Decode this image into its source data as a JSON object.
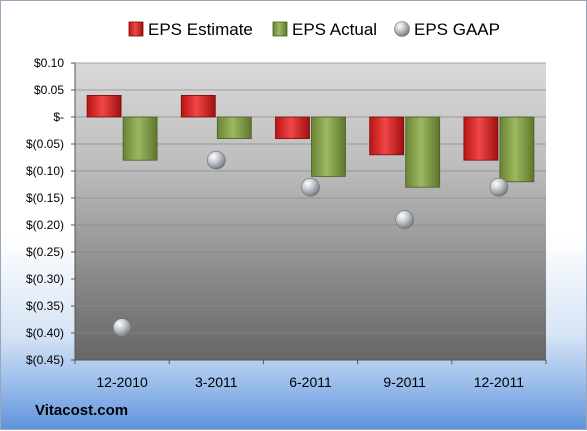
{
  "chart_data": {
    "type": "bar",
    "title": "",
    "xlabel": "",
    "ylabel": "",
    "categories": [
      "12-2010",
      "3-2011",
      "6-2011",
      "9-2011",
      "12-2011"
    ],
    "series": [
      {
        "name": "EPS Estimate",
        "kind": "bar",
        "values": [
          0.04,
          0.04,
          -0.04,
          -0.07,
          -0.08
        ],
        "color": "#d42a2a"
      },
      {
        "name": "EPS Actual",
        "kind": "bar",
        "values": [
          -0.08,
          -0.04,
          -0.11,
          -0.13,
          -0.12
        ],
        "color": "#7f9a44"
      },
      {
        "name": "EPS GAAP",
        "kind": "point",
        "values": [
          -0.39,
          -0.08,
          -0.13,
          -0.19,
          -0.13
        ],
        "color": "#b8bcc2"
      }
    ],
    "ylim": [
      -0.45,
      0.1
    ],
    "yticks": [
      0.1,
      0.05,
      0,
      -0.05,
      -0.1,
      -0.15,
      -0.2,
      -0.25,
      -0.3,
      -0.35,
      -0.4,
      -0.45
    ],
    "ytick_labels": [
      "$0.10",
      "$0.05",
      "$-",
      "$(0.05)",
      "$(0.10)",
      "$(0.15)",
      "$(0.20)",
      "$(0.25)",
      "$(0.30)",
      "$(0.35)",
      "$(0.40)",
      "$(0.45)"
    ],
    "grid": true,
    "legend_position": "top"
  },
  "watermark": "Vitacost.com"
}
